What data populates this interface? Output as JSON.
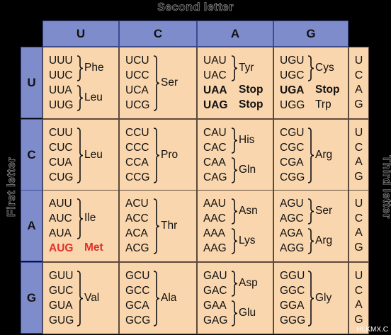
{
  "labels": {
    "second": "Second letter",
    "first": "First letter",
    "third": "Third letter"
  },
  "watermark": "HLKMX.C",
  "bases": [
    "U",
    "C",
    "A",
    "G"
  ],
  "rows": [
    {
      "first": "U",
      "cells": [
        {
          "codons": [
            "UUU",
            "UUC",
            "UUA",
            "UUG"
          ],
          "groups": [
            {
              "rows": [
                0,
                1
              ],
              "aa": "Phe"
            },
            {
              "rows": [
                2,
                3
              ],
              "aa": "Leu"
            }
          ]
        },
        {
          "codons": [
            "UCU",
            "UCC",
            "UCA",
            "UCG"
          ],
          "groups": [
            {
              "rows": [
                0,
                3
              ],
              "aa": "Ser"
            }
          ]
        },
        {
          "codons": [
            "UAU",
            "UAC",
            "UAA",
            "UAG"
          ],
          "groups": [
            {
              "rows": [
                0,
                1
              ],
              "aa": "Tyr"
            }
          ],
          "singles": [
            {
              "row": 2,
              "aa": "Stop",
              "style": "bold"
            },
            {
              "row": 3,
              "aa": "Stop",
              "style": "bold"
            }
          ]
        },
        {
          "codons": [
            "UGU",
            "UGC",
            "UGA",
            "UGG"
          ],
          "groups": [
            {
              "rows": [
                0,
                1
              ],
              "aa": "Cys"
            }
          ],
          "singles": [
            {
              "row": 2,
              "aa": "Stop",
              "style": "bold"
            },
            {
              "row": 3,
              "aa": "Trp",
              "style": ""
            }
          ]
        }
      ]
    },
    {
      "first": "C",
      "cells": [
        {
          "codons": [
            "CUU",
            "CUC",
            "CUA",
            "CUG"
          ],
          "groups": [
            {
              "rows": [
                0,
                3
              ],
              "aa": "Leu"
            }
          ]
        },
        {
          "codons": [
            "CCU",
            "CCC",
            "CCA",
            "CCG"
          ],
          "groups": [
            {
              "rows": [
                0,
                3
              ],
              "aa": "Pro"
            }
          ]
        },
        {
          "codons": [
            "CAU",
            "CAC",
            "CAA",
            "CAG"
          ],
          "groups": [
            {
              "rows": [
                0,
                1
              ],
              "aa": "His"
            },
            {
              "rows": [
                2,
                3
              ],
              "aa": "Gln"
            }
          ]
        },
        {
          "codons": [
            "CGU",
            "CGC",
            "CGA",
            "CGG"
          ],
          "groups": [
            {
              "rows": [
                0,
                3
              ],
              "aa": "Arg"
            }
          ]
        }
      ]
    },
    {
      "first": "A",
      "cells": [
        {
          "codons": [
            "AUU",
            "AUC",
            "AUA",
            "AUG"
          ],
          "groups": [
            {
              "rows": [
                0,
                2
              ],
              "aa": "Ile"
            }
          ],
          "singles": [
            {
              "row": 3,
              "aa": "Met",
              "style": "red"
            }
          ]
        },
        {
          "codons": [
            "ACU",
            "ACC",
            "ACA",
            "ACG"
          ],
          "groups": [
            {
              "rows": [
                0,
                3
              ],
              "aa": "Thr"
            }
          ]
        },
        {
          "codons": [
            "AAU",
            "AAC",
            "AAA",
            "AAG"
          ],
          "groups": [
            {
              "rows": [
                0,
                1
              ],
              "aa": "Asn"
            },
            {
              "rows": [
                2,
                3
              ],
              "aa": "Lys"
            }
          ]
        },
        {
          "codons": [
            "AGU",
            "AGC",
            "AGA",
            "AGG"
          ],
          "groups": [
            {
              "rows": [
                0,
                1
              ],
              "aa": "Ser"
            },
            {
              "rows": [
                2,
                3
              ],
              "aa": "Arg"
            }
          ]
        }
      ]
    },
    {
      "first": "G",
      "cells": [
        {
          "codons": [
            "GUU",
            "GUC",
            "GUA",
            "GUG"
          ],
          "groups": [
            {
              "rows": [
                0,
                3
              ],
              "aa": "Val"
            }
          ]
        },
        {
          "codons": [
            "GCU",
            "GCC",
            "GCA",
            "GCG"
          ],
          "groups": [
            {
              "rows": [
                0,
                3
              ],
              "aa": "Ala"
            }
          ]
        },
        {
          "codons": [
            "GAU",
            "GAC",
            "GAA",
            "GAG"
          ],
          "groups": [
            {
              "rows": [
                0,
                1
              ],
              "aa": "Asp"
            },
            {
              "rows": [
                2,
                3
              ],
              "aa": "Glu"
            }
          ]
        },
        {
          "codons": [
            "GGU",
            "GGC",
            "GGA",
            "GGG"
          ],
          "groups": [
            {
              "rows": [
                0,
                3
              ],
              "aa": "Gly"
            }
          ]
        }
      ]
    }
  ],
  "bold_codons": [
    "UAA",
    "UAG",
    "UGA"
  ],
  "red_codons": [
    "AUG"
  ]
}
